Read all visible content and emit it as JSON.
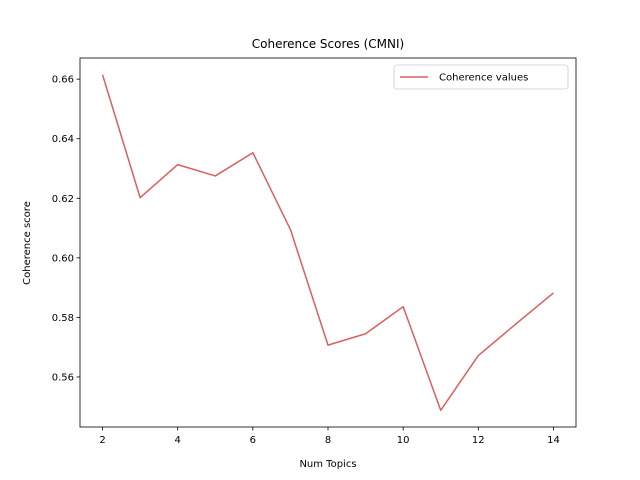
{
  "chart_data": {
    "type": "line",
    "title": "Coherence Scores (CMNI)",
    "xlabel": "Num Topics",
    "ylabel": "Coherence score",
    "x": [
      2,
      3,
      4,
      5,
      6,
      7,
      8,
      9,
      10,
      11,
      12,
      13,
      14
    ],
    "series": [
      {
        "name": "Coherence values",
        "color": "#d95f5f",
        "values": [
          0.6615,
          0.6202,
          0.6313,
          0.6275,
          0.6353,
          0.6095,
          0.5707,
          0.5745,
          0.5836,
          0.5488,
          0.5672,
          0.5778,
          0.5882
        ]
      }
    ],
    "xticks": [
      2,
      4,
      6,
      8,
      10,
      12,
      14
    ],
    "yticks": [
      0.56,
      0.58,
      0.6,
      0.62,
      0.64,
      0.66
    ],
    "ytick_labels": [
      "0.56",
      "0.58",
      "0.60",
      "0.62",
      "0.64",
      "0.66"
    ],
    "xlim": [
      1.4,
      14.6
    ],
    "ylim": [
      0.5432,
      0.6671
    ],
    "grid": false,
    "legend_position": "top-right"
  }
}
